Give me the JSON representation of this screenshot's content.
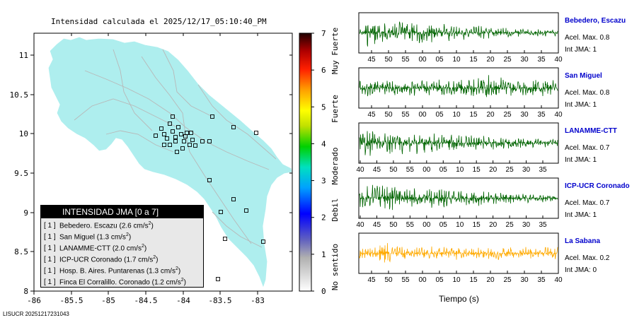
{
  "map": {
    "title": "Intensidad calculada el 2025/12/17_05:10:40_PM",
    "x_ticks": [
      "-86",
      "-85.5",
      "-85",
      "-84.5",
      "-84",
      "-83.5",
      "-83"
    ],
    "y_ticks": [
      "11",
      "10.5",
      "10",
      "9.5",
      "9",
      "8.5",
      "8"
    ],
    "land_color": "#aeeeee",
    "station_count": 34
  },
  "colorbar": {
    "ticks": [
      "0",
      "1",
      "2",
      "3",
      "4",
      "5",
      "6",
      "7"
    ],
    "labels": [
      "No sentido",
      "Debil",
      "Moderado",
      "Fuerte",
      "Muy Fuerte"
    ]
  },
  "legend": {
    "title": "INTENSIDAD JMA [0 a 7]",
    "rows": [
      {
        "badge": "[ 1 ]",
        "text": "Bebedero. Escazu (2.6 cm/s",
        "unit_exp": "2",
        ")": ")"
      },
      {
        "badge": "[ 1 ]",
        "text": "San Miguel (1.3 cm/s",
        "unit_exp": "2",
        ")": ")"
      },
      {
        "badge": "[ 1 ]",
        "text": "LANAMME-CTT (2.0 cm/s",
        "unit_exp": "2",
        ")": ")"
      },
      {
        "badge": "[ 1 ]",
        "text": "ICP-UCR Coronado (1.7 cm/s",
        "unit_exp": "2",
        ")": ")"
      },
      {
        "badge": "[ 1 ]",
        "text": "Hosp. B. Aires. Puntarenas (1.3 cm/s",
        "unit_exp": "2",
        ")": ")"
      },
      {
        "badge": "[ 1 ]",
        "text": "Finca El Corralillo. Coronado (1.2 cm/s",
        "unit_exp": "2",
        ")": ")"
      }
    ]
  },
  "stations": [
    {
      "name": "Bebedero, Escazu",
      "acel": "Acel. Max. 0.8",
      "int": "Int JMA: 1",
      "color": "#006400",
      "ticks": [
        "45",
        "50",
        "55",
        "00",
        "05",
        "10",
        "15",
        "20",
        "25",
        "30",
        "35",
        "40"
      ],
      "amp": 0.85,
      "decay": "early"
    },
    {
      "name": "San Miguel",
      "acel": "Acel. Max. 0.8",
      "int": "Int JMA: 1",
      "color": "#006400",
      "ticks": [
        "45",
        "50",
        "55",
        "00",
        "05",
        "10",
        "15",
        "20",
        "25",
        "30",
        "35",
        "40"
      ],
      "amp": 0.75,
      "decay": "mid"
    },
    {
      "name": "LANAMME-CTT",
      "acel": "Acel. Max. 0.7",
      "int": "Int JMA: 1",
      "color": "#006400",
      "ticks": [
        "40",
        "45",
        "50",
        "55",
        "00",
        "05",
        "10",
        "15",
        "20",
        "25",
        "30",
        "35"
      ],
      "amp": 0.8,
      "decay": "slow"
    },
    {
      "name": "ICP-UCR Coronado",
      "acel": "Acel. Max. 0.7",
      "int": "Int JMA: 1",
      "color": "#006400",
      "ticks": [
        "40",
        "45",
        "50",
        "55",
        "00",
        "05",
        "10",
        "15",
        "20",
        "25",
        "30",
        "35"
      ],
      "amp": 0.8,
      "decay": "slow"
    },
    {
      "name": "La Sabana",
      "acel": "Acel. Max. 0.2",
      "int": "Int JMA: 0",
      "color": "#ffaa00",
      "ticks": [
        "45",
        "50",
        "55",
        "00",
        "05",
        "10",
        "15",
        "20",
        "25",
        "30",
        "35",
        "40"
      ],
      "amp": 0.7,
      "decay": "early"
    }
  ],
  "chart_data": {
    "type": "line",
    "title": "Intensidad calculada el 2025/12/17_05:10:40_PM",
    "xlabel": "Tiempo (s)",
    "series": [
      {
        "name": "Bebedero, Escazu",
        "acel_max": 0.8,
        "jma": 1
      },
      {
        "name": "San Miguel",
        "acel_max": 0.8,
        "jma": 1
      },
      {
        "name": "LANAMME-CTT",
        "acel_max": 0.7,
        "jma": 1
      },
      {
        "name": "ICP-UCR Coronado",
        "acel_max": 0.7,
        "jma": 1
      },
      {
        "name": "La Sabana",
        "acel_max": 0.2,
        "jma": 0
      }
    ]
  },
  "footer": "LISUCR 20251217231043"
}
